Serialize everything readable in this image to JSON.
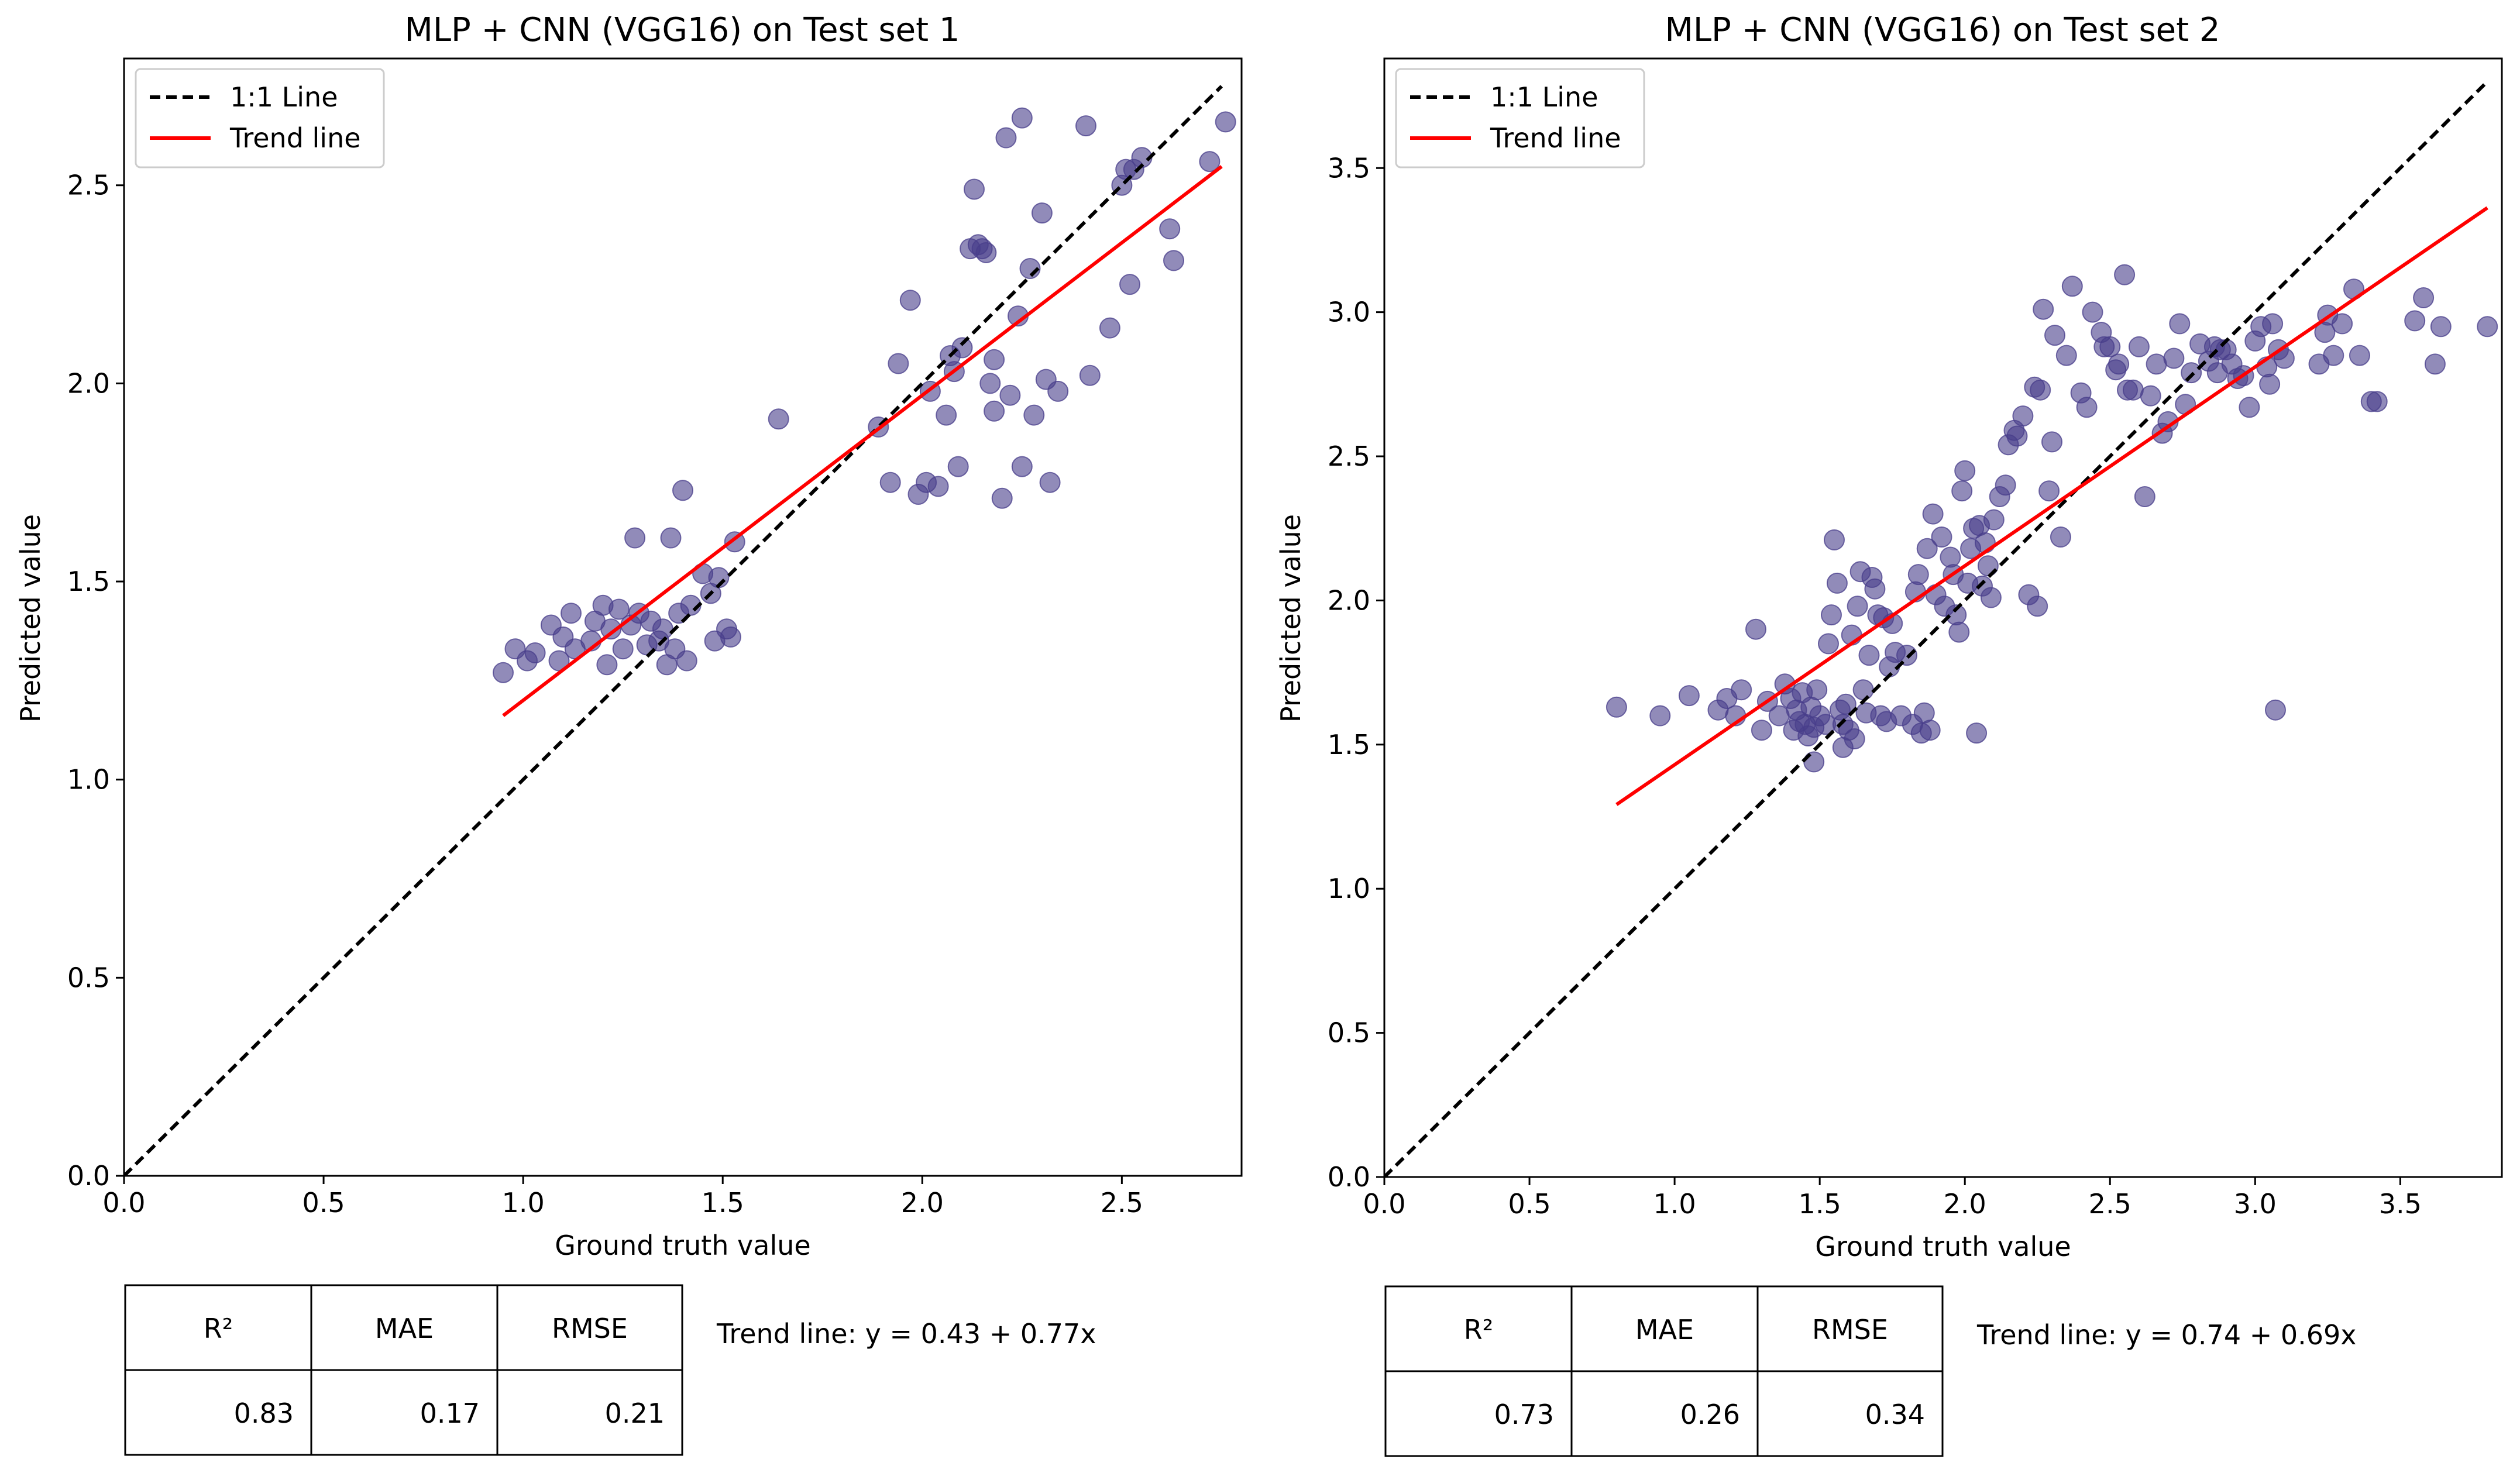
{
  "chart_data": [
    {
      "type": "scatter",
      "title": "MLP + CNN (VGG16) on Test set 1",
      "xlabel": "Ground truth value",
      "ylabel": "Predicted value",
      "xlim": [
        0,
        2.8
      ],
      "ylim": [
        0,
        2.82
      ],
      "xticks": [
        0.0,
        0.5,
        1.0,
        1.5,
        2.0,
        2.5
      ],
      "yticks": [
        0.0,
        0.5,
        1.0,
        1.5,
        2.0,
        2.5
      ],
      "tick_labels_x": [
        "0.0",
        "0.5",
        "1.0",
        "1.5",
        "2.0",
        "2.5"
      ],
      "tick_labels_y": [
        "0.0",
        "0.5",
        "1.0",
        "1.5",
        "2.0",
        "2.5"
      ],
      "legend": {
        "location": "top-left",
        "entries": [
          {
            "label": "1:1 Line",
            "color": "#000000",
            "style": "dashed"
          },
          {
            "label": "Trend line",
            "color": "#ff0000",
            "style": "solid"
          }
        ]
      },
      "identity_line": {
        "from": [
          0,
          0
        ],
        "to": [
          2.75,
          2.75
        ]
      },
      "trend_line": {
        "intercept": 0.43,
        "slope": 0.77,
        "x_range": [
          0.95,
          2.75
        ]
      },
      "trend_text": "Trend line: y = 0.43 + 0.77x",
      "point_color": "#483d8b",
      "points": [
        [
          0.95,
          1.27
        ],
        [
          0.98,
          1.33
        ],
        [
          1.01,
          1.3
        ],
        [
          1.03,
          1.32
        ],
        [
          1.07,
          1.39
        ],
        [
          1.09,
          1.3
        ],
        [
          1.1,
          1.36
        ],
        [
          1.12,
          1.42
        ],
        [
          1.13,
          1.33
        ],
        [
          1.17,
          1.35
        ],
        [
          1.18,
          1.4
        ],
        [
          1.2,
          1.44
        ],
        [
          1.21,
          1.29
        ],
        [
          1.22,
          1.38
        ],
        [
          1.24,
          1.43
        ],
        [
          1.25,
          1.33
        ],
        [
          1.27,
          1.39
        ],
        [
          1.28,
          1.61
        ],
        [
          1.29,
          1.42
        ],
        [
          1.31,
          1.34
        ],
        [
          1.32,
          1.4
        ],
        [
          1.34,
          1.35
        ],
        [
          1.35,
          1.38
        ],
        [
          1.36,
          1.29
        ],
        [
          1.37,
          1.61
        ],
        [
          1.38,
          1.33
        ],
        [
          1.39,
          1.42
        ],
        [
          1.4,
          1.73
        ],
        [
          1.41,
          1.3
        ],
        [
          1.42,
          1.44
        ],
        [
          1.45,
          1.52
        ],
        [
          1.47,
          1.47
        ],
        [
          1.48,
          1.35
        ],
        [
          1.49,
          1.51
        ],
        [
          1.51,
          1.38
        ],
        [
          1.52,
          1.36
        ],
        [
          1.53,
          1.6
        ],
        [
          1.64,
          1.91
        ],
        [
          1.89,
          1.89
        ],
        [
          1.92,
          1.75
        ],
        [
          1.94,
          2.05
        ],
        [
          1.97,
          2.21
        ],
        [
          1.99,
          1.72
        ],
        [
          2.01,
          1.75
        ],
        [
          2.02,
          1.98
        ],
        [
          2.04,
          1.74
        ],
        [
          2.06,
          1.92
        ],
        [
          2.07,
          2.07
        ],
        [
          2.08,
          2.03
        ],
        [
          2.09,
          1.79
        ],
        [
          2.1,
          2.09
        ],
        [
          2.12,
          2.34
        ],
        [
          2.13,
          2.49
        ],
        [
          2.14,
          2.35
        ],
        [
          2.15,
          2.34
        ],
        [
          2.16,
          2.33
        ],
        [
          2.17,
          2.0
        ],
        [
          2.18,
          2.06
        ],
        [
          2.18,
          1.93
        ],
        [
          2.2,
          1.71
        ],
        [
          2.21,
          2.62
        ],
        [
          2.22,
          1.97
        ],
        [
          2.24,
          2.17
        ],
        [
          2.25,
          2.67
        ],
        [
          2.25,
          1.79
        ],
        [
          2.27,
          2.29
        ],
        [
          2.28,
          1.92
        ],
        [
          2.3,
          2.43
        ],
        [
          2.31,
          2.01
        ],
        [
          2.32,
          1.75
        ],
        [
          2.34,
          1.98
        ],
        [
          2.41,
          2.65
        ],
        [
          2.42,
          2.02
        ],
        [
          2.47,
          2.14
        ],
        [
          2.5,
          2.5
        ],
        [
          2.51,
          2.54
        ],
        [
          2.52,
          2.25
        ],
        [
          2.53,
          2.54
        ],
        [
          2.55,
          2.57
        ],
        [
          2.62,
          2.39
        ],
        [
          2.63,
          2.31
        ],
        [
          2.72,
          2.56
        ],
        [
          2.76,
          2.66
        ]
      ],
      "metrics_table": {
        "headers": [
          "R²",
          "MAE",
          "RMSE"
        ],
        "values": [
          "0.83",
          "0.17",
          "0.21"
        ]
      }
    },
    {
      "type": "scatter",
      "title": "MLP + CNN (VGG16) on Test set 2",
      "xlabel": "Ground truth value",
      "ylabel": "Predicted value",
      "xlim": [
        0,
        3.85
      ],
      "ylim": [
        0,
        3.88
      ],
      "xticks": [
        0.0,
        0.5,
        1.0,
        1.5,
        2.0,
        2.5,
        3.0,
        3.5
      ],
      "yticks": [
        0.0,
        0.5,
        1.0,
        1.5,
        2.0,
        2.5,
        3.0,
        3.5
      ],
      "tick_labels_x": [
        "0.0",
        "0.5",
        "1.0",
        "1.5",
        "2.0",
        "2.5",
        "3.0",
        "3.5"
      ],
      "tick_labels_y": [
        "0.0",
        "0.5",
        "1.0",
        "1.5",
        "2.0",
        "2.5",
        "3.0",
        "3.5"
      ],
      "legend": {
        "location": "top-left",
        "entries": [
          {
            "label": "1:1 Line",
            "color": "#000000",
            "style": "dashed"
          },
          {
            "label": "Trend line",
            "color": "#ff0000",
            "style": "solid"
          }
        ]
      },
      "identity_line": {
        "from": [
          0,
          0
        ],
        "to": [
          3.8,
          3.8
        ]
      },
      "trend_line": {
        "intercept": 0.74,
        "slope": 0.69,
        "x_range": [
          0.8,
          3.8
        ]
      },
      "trend_text": "Trend line: y = 0.74 + 0.69x",
      "point_color": "#483d8b",
      "points": [
        [
          0.8,
          1.63
        ],
        [
          1.05,
          1.67
        ],
        [
          1.15,
          1.62
        ],
        [
          1.18,
          1.66
        ],
        [
          1.21,
          1.6
        ],
        [
          1.23,
          1.69
        ],
        [
          1.28,
          1.9
        ],
        [
          1.3,
          1.55
        ],
        [
          1.32,
          1.65
        ],
        [
          1.36,
          1.6
        ],
        [
          1.38,
          1.71
        ],
        [
          1.4,
          1.66
        ],
        [
          1.41,
          1.55
        ],
        [
          1.42,
          1.62
        ],
        [
          1.43,
          1.58
        ],
        [
          1.44,
          1.68
        ],
        [
          1.45,
          1.57
        ],
        [
          1.46,
          1.53
        ],
        [
          1.47,
          1.63
        ],
        [
          1.48,
          1.56
        ],
        [
          1.49,
          1.69
        ],
        [
          1.5,
          1.6
        ],
        [
          1.52,
          1.57
        ],
        [
          1.53,
          1.85
        ],
        [
          1.54,
          1.95
        ],
        [
          1.55,
          2.21
        ],
        [
          1.56,
          2.06
        ],
        [
          1.57,
          1.62
        ],
        [
          1.58,
          1.57
        ],
        [
          1.59,
          1.64
        ],
        [
          1.6,
          1.55
        ],
        [
          1.61,
          1.88
        ],
        [
          1.62,
          1.52
        ],
        [
          1.63,
          1.98
        ],
        [
          1.64,
          2.1
        ],
        [
          1.65,
          1.69
        ],
        [
          1.66,
          1.61
        ],
        [
          1.67,
          1.81
        ],
        [
          1.68,
          2.08
        ],
        [
          1.69,
          2.04
        ],
        [
          1.7,
          1.95
        ],
        [
          1.71,
          1.6
        ],
        [
          1.72,
          1.94
        ],
        [
          1.73,
          1.58
        ],
        [
          1.74,
          1.77
        ],
        [
          1.75,
          1.92
        ],
        [
          1.76,
          1.82
        ],
        [
          1.78,
          1.6
        ],
        [
          1.8,
          1.81
        ],
        [
          1.82,
          1.57
        ],
        [
          1.83,
          2.03
        ],
        [
          1.84,
          2.09
        ],
        [
          1.85,
          1.54
        ],
        [
          1.86,
          1.61
        ],
        [
          1.87,
          2.18
        ],
        [
          1.88,
          1.55
        ],
        [
          1.89,
          2.3
        ],
        [
          1.9,
          2.02
        ],
        [
          1.92,
          2.22
        ],
        [
          1.93,
          1.98
        ],
        [
          1.95,
          2.15
        ],
        [
          1.96,
          2.09
        ],
        [
          1.97,
          1.95
        ],
        [
          1.98,
          1.89
        ],
        [
          1.99,
          2.38
        ],
        [
          2.0,
          2.45
        ],
        [
          2.01,
          2.06
        ],
        [
          2.02,
          2.18
        ],
        [
          2.03,
          2.25
        ],
        [
          2.04,
          1.54
        ],
        [
          2.05,
          2.26
        ],
        [
          2.06,
          2.05
        ],
        [
          2.07,
          2.2
        ],
        [
          2.08,
          2.12
        ],
        [
          2.09,
          2.01
        ],
        [
          2.1,
          2.28
        ],
        [
          2.12,
          2.36
        ],
        [
          2.14,
          2.4
        ],
        [
          2.15,
          2.54
        ],
        [
          2.17,
          2.59
        ],
        [
          2.18,
          2.57
        ],
        [
          2.2,
          2.64
        ],
        [
          2.22,
          2.02
        ],
        [
          2.24,
          2.74
        ],
        [
          2.25,
          1.98
        ],
        [
          2.26,
          2.73
        ],
        [
          2.27,
          3.01
        ],
        [
          2.29,
          2.38
        ],
        [
          2.3,
          2.55
        ],
        [
          2.31,
          2.92
        ],
        [
          2.33,
          2.22
        ],
        [
          2.35,
          2.85
        ],
        [
          2.37,
          3.09
        ],
        [
          2.4,
          2.72
        ],
        [
          2.42,
          2.67
        ],
        [
          2.44,
          3.0
        ],
        [
          2.47,
          2.93
        ],
        [
          2.48,
          2.88
        ],
        [
          2.5,
          2.88
        ],
        [
          2.52,
          2.8
        ],
        [
          2.53,
          2.82
        ],
        [
          2.55,
          3.13
        ],
        [
          2.56,
          2.73
        ],
        [
          2.58,
          2.73
        ],
        [
          2.6,
          2.88
        ],
        [
          2.62,
          2.36
        ],
        [
          2.64,
          2.71
        ],
        [
          2.66,
          2.82
        ],
        [
          2.68,
          2.58
        ],
        [
          2.7,
          2.62
        ],
        [
          2.72,
          2.84
        ],
        [
          2.74,
          2.96
        ],
        [
          2.76,
          2.68
        ],
        [
          2.78,
          2.79
        ],
        [
          2.81,
          2.89
        ],
        [
          2.84,
          2.83
        ],
        [
          2.86,
          2.88
        ],
        [
          2.87,
          2.79
        ],
        [
          2.88,
          2.87
        ],
        [
          2.9,
          2.87
        ],
        [
          2.92,
          2.82
        ],
        [
          2.94,
          2.77
        ],
        [
          2.96,
          2.78
        ],
        [
          2.98,
          2.67
        ],
        [
          3.0,
          2.9
        ],
        [
          3.02,
          2.95
        ],
        [
          3.04,
          2.81
        ],
        [
          3.05,
          2.75
        ],
        [
          3.06,
          2.96
        ],
        [
          3.07,
          1.62
        ],
        [
          3.08,
          2.87
        ],
        [
          3.1,
          2.84
        ],
        [
          3.22,
          2.82
        ],
        [
          3.24,
          2.93
        ],
        [
          3.25,
          2.99
        ],
        [
          3.27,
          2.85
        ],
        [
          3.3,
          2.96
        ],
        [
          3.34,
          3.08
        ],
        [
          3.36,
          2.85
        ],
        [
          3.4,
          2.69
        ],
        [
          3.42,
          2.69
        ],
        [
          3.55,
          2.97
        ],
        [
          3.58,
          3.05
        ],
        [
          3.62,
          2.82
        ],
        [
          3.64,
          2.95
        ],
        [
          3.8,
          2.95
        ],
        [
          0.95,
          1.6
        ],
        [
          1.48,
          1.44
        ],
        [
          1.58,
          1.49
        ]
      ],
      "metrics_table": {
        "headers": [
          "R²",
          "MAE",
          "RMSE"
        ],
        "values": [
          "0.73",
          "0.26",
          "0.34"
        ]
      }
    }
  ]
}
